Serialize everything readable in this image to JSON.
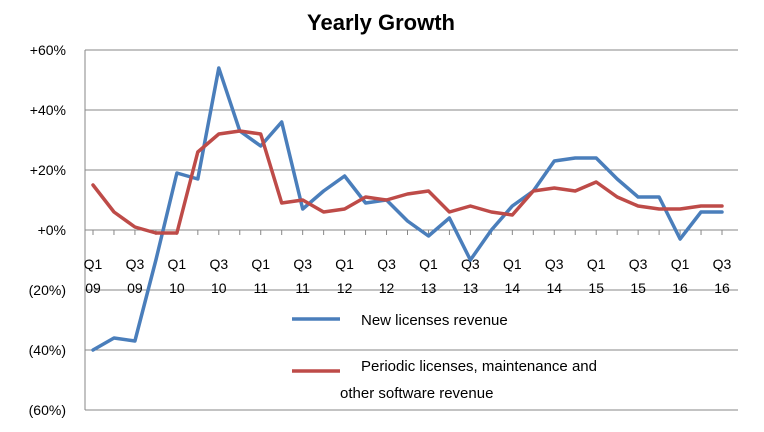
{
  "chart_data": {
    "type": "line",
    "title": "Yearly Growth",
    "xlabel": "",
    "ylabel": "",
    "ylim": [
      -60,
      60
    ],
    "y_ticks": [
      {
        "value": 60,
        "label": "+60%"
      },
      {
        "value": 40,
        "label": "+40%"
      },
      {
        "value": 20,
        "label": "+20%"
      },
      {
        "value": 0,
        "label": "+0%"
      },
      {
        "value": -20,
        "label": "(20%)"
      },
      {
        "value": -40,
        "label": "(40%)"
      },
      {
        "value": -60,
        "label": "(60%)"
      }
    ],
    "grid": true,
    "legend_position": "bottom-center",
    "x": [
      "Q1 09",
      "Q2 09",
      "Q3 09",
      "Q4 09",
      "Q1 10",
      "Q2 10",
      "Q3 10",
      "Q4 10",
      "Q1 11",
      "Q2 11",
      "Q3 11",
      "Q4 11",
      "Q1 12",
      "Q2 12",
      "Q3 12",
      "Q4 12",
      "Q1 13",
      "Q2 13",
      "Q3 13",
      "Q4 13",
      "Q1 14",
      "Q2 14",
      "Q3 14",
      "Q4 14",
      "Q1 15",
      "Q2 15",
      "Q3 15",
      "Q4 15",
      "Q1 16",
      "Q2 16",
      "Q3 16"
    ],
    "x_tick_labels": [
      {
        "index": 0,
        "line1": "Q1",
        "line2": "09"
      },
      {
        "index": 2,
        "line1": "Q3",
        "line2": "09"
      },
      {
        "index": 4,
        "line1": "Q1",
        "line2": "10"
      },
      {
        "index": 6,
        "line1": "Q3",
        "line2": "10"
      },
      {
        "index": 8,
        "line1": "Q1",
        "line2": "11"
      },
      {
        "index": 10,
        "line1": "Q3",
        "line2": "11"
      },
      {
        "index": 12,
        "line1": "Q1",
        "line2": "12"
      },
      {
        "index": 14,
        "line1": "Q3",
        "line2": "12"
      },
      {
        "index": 16,
        "line1": "Q1",
        "line2": "13"
      },
      {
        "index": 18,
        "line1": "Q3",
        "line2": "13"
      },
      {
        "index": 20,
        "line1": "Q1",
        "line2": "14"
      },
      {
        "index": 22,
        "line1": "Q3",
        "line2": "14"
      },
      {
        "index": 24,
        "line1": "Q1",
        "line2": "15"
      },
      {
        "index": 26,
        "line1": "Q3",
        "line2": "15"
      },
      {
        "index": 28,
        "line1": "Q1",
        "line2": "16"
      },
      {
        "index": 30,
        "line1": "Q3",
        "line2": "16"
      }
    ],
    "series": [
      {
        "name": "New licenses revenue",
        "color": "#4a7ebb",
        "values": [
          -40,
          -36,
          -37,
          -10,
          19,
          17,
          54,
          33,
          28,
          36,
          7,
          13,
          18,
          9,
          10,
          3,
          -2,
          4,
          -10,
          0,
          8,
          13,
          23,
          24,
          24,
          17,
          11,
          11,
          -3,
          6,
          6
        ]
      },
      {
        "name": "Periodic licenses, maintenance and other software revenue",
        "legend_lines": [
          "Periodic licenses, maintenance and",
          "other software revenue"
        ],
        "color": "#be4b48",
        "values": [
          15,
          6,
          1,
          -1,
          -1,
          26,
          32,
          33,
          32,
          9,
          10,
          6,
          7,
          11,
          10,
          12,
          13,
          6,
          8,
          6,
          5,
          13,
          14,
          13,
          16,
          11,
          8,
          7,
          7,
          8,
          8
        ]
      }
    ]
  }
}
